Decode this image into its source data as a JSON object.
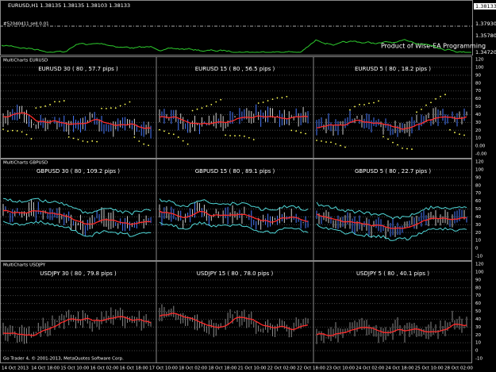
{
  "window": {
    "title": "EURUSD,H1  1.38135 1.38135 1.38103 1.38133",
    "order_label": "#52040411 sell 0.01",
    "price_labels": [
      "1.38133",
      "1.37930",
      "1.35780",
      "1.34720"
    ],
    "brand": "Product of Wise-EA Programming"
  },
  "sections": [
    {
      "label": "MultiCharts EURUSD",
      "style": "dots",
      "panels": [
        "EURUSD 30 ( 80 , 57.7 pips )",
        "EURUSD 15 ( 80 , 56.5 pips )",
        "EURUSD 5 ( 80 , 18.2 pips )"
      ],
      "axis_ticks": [
        "120",
        "100",
        "90",
        "80",
        "70",
        "60",
        "50",
        "40",
        "30",
        "20",
        "10",
        "0.00",
        "-0.00"
      ]
    },
    {
      "label": "MultiCharts GBPUSD",
      "style": "bands",
      "panels": [
        "GBPUSD 30 ( 80 , 109.2 pips )",
        "GBPUSD 15 ( 80 , 89.1 pips )",
        "GBPUSD 5 ( 80 , 22.7 pips )"
      ],
      "axis_ticks": [
        "120",
        "100",
        "90",
        "80",
        "70",
        "60",
        "50",
        "40",
        "30",
        "20",
        "10",
        "0",
        "-10"
      ]
    },
    {
      "label": "MultiCharts USDJPY",
      "style": "plain",
      "panels": [
        "USDJPY 30 ( 80 , 79.8 pips )",
        "USDJPY 15 ( 80 , 78.0 pips )",
        "USDJPY 5 ( 80 , 40.1 pips )"
      ],
      "axis_ticks": [
        "120",
        "100",
        "90",
        "80",
        "70",
        "60",
        "50",
        "40",
        "30",
        "20",
        "10",
        "0",
        "-10"
      ]
    }
  ],
  "footer": "Go Trader 4, © 2001-2013, MetaQuotes Software Corp.",
  "time_labels": [
    "14 Oct 2013",
    "14 Oct 18:00",
    "15 Oct 10:00",
    "16 Oct 02:00",
    "16 Oct 18:00",
    "17 Oct 10:00",
    "18 Oct 02:00",
    "18 Oct 18:00",
    "21 Oct 10:00",
    "22 Oct 02:00",
    "22 Oct 18:00",
    "23 Oct 10:00",
    "24 Oct 02:00",
    "24 Oct 18:00",
    "25 Oct 10:00",
    "28 Oct 02:00"
  ]
}
